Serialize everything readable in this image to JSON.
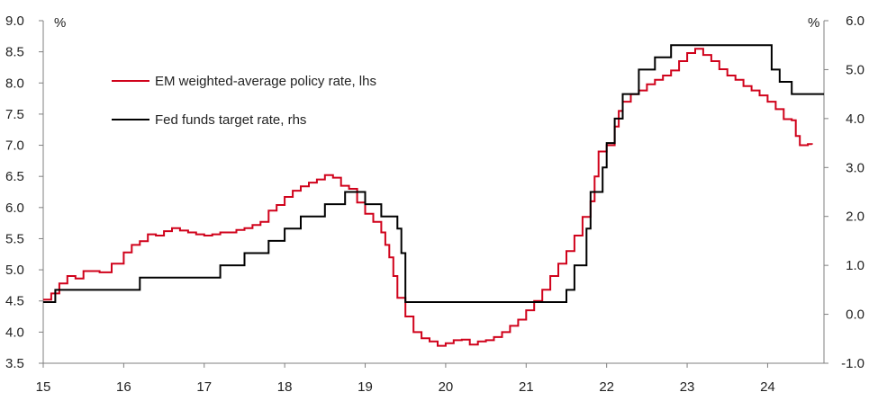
{
  "chart_data": {
    "type": "line",
    "title": "",
    "xlabel": "",
    "x_tick_labels": [
      "15",
      "16",
      "17",
      "18",
      "19",
      "20",
      "21",
      "22",
      "23",
      "24"
    ],
    "x_tick_values": [
      15,
      16,
      17,
      18,
      19,
      20,
      21,
      22,
      23,
      24
    ],
    "xlim": [
      15,
      24.7
    ],
    "y_left": {
      "unit_label": "%",
      "ylim": [
        3.5,
        9.0
      ],
      "tick_values": [
        3.5,
        4.0,
        4.5,
        5.0,
        5.5,
        6.0,
        6.5,
        7.0,
        7.5,
        8.0,
        8.5,
        9.0
      ],
      "tick_labels": [
        "3.5",
        "4.0",
        "4.5",
        "5.0",
        "5.5",
        "6.0",
        "6.5",
        "7.0",
        "7.5",
        "8.0",
        "8.5",
        "9.0"
      ]
    },
    "y_right": {
      "unit_label": "%",
      "ylim": [
        -1.0,
        6.0
      ],
      "tick_values": [
        -1.0,
        0.0,
        1.0,
        2.0,
        3.0,
        4.0,
        5.0,
        6.0
      ],
      "tick_labels": [
        "-1.0",
        "0.0",
        "1.0",
        "2.0",
        "3.0",
        "4.0",
        "5.0",
        "6.0"
      ]
    },
    "grid": false,
    "legend_position": "top-left",
    "series": [
      {
        "name": "EM weighted-average policy rate, lhs",
        "axis": "left",
        "color": "#d0021b",
        "step": true,
        "points": [
          [
            15.0,
            4.52
          ],
          [
            15.1,
            4.62
          ],
          [
            15.2,
            4.78
          ],
          [
            15.3,
            4.9
          ],
          [
            15.4,
            4.86
          ],
          [
            15.5,
            4.98
          ],
          [
            15.7,
            4.96
          ],
          [
            15.85,
            5.1
          ],
          [
            16.0,
            5.28
          ],
          [
            16.1,
            5.4
          ],
          [
            16.2,
            5.46
          ],
          [
            16.3,
            5.57
          ],
          [
            16.4,
            5.55
          ],
          [
            16.5,
            5.62
          ],
          [
            16.6,
            5.67
          ],
          [
            16.7,
            5.63
          ],
          [
            16.8,
            5.6
          ],
          [
            16.9,
            5.57
          ],
          [
            17.0,
            5.55
          ],
          [
            17.1,
            5.57
          ],
          [
            17.2,
            5.6
          ],
          [
            17.4,
            5.64
          ],
          [
            17.5,
            5.67
          ],
          [
            17.6,
            5.72
          ],
          [
            17.7,
            5.77
          ],
          [
            17.8,
            5.95
          ],
          [
            17.9,
            6.04
          ],
          [
            18.0,
            6.17
          ],
          [
            18.1,
            6.27
          ],
          [
            18.2,
            6.34
          ],
          [
            18.3,
            6.4
          ],
          [
            18.4,
            6.45
          ],
          [
            18.5,
            6.52
          ],
          [
            18.6,
            6.48
          ],
          [
            18.7,
            6.35
          ],
          [
            18.8,
            6.3
          ],
          [
            18.9,
            6.08
          ],
          [
            19.0,
            5.9
          ],
          [
            19.1,
            5.77
          ],
          [
            19.2,
            5.6
          ],
          [
            19.25,
            5.4
          ],
          [
            19.3,
            5.2
          ],
          [
            19.35,
            4.9
          ],
          [
            19.4,
            4.55
          ],
          [
            19.5,
            4.25
          ],
          [
            19.6,
            4.0
          ],
          [
            19.7,
            3.9
          ],
          [
            19.8,
            3.85
          ],
          [
            19.9,
            3.78
          ],
          [
            20.0,
            3.82
          ],
          [
            20.1,
            3.87
          ],
          [
            20.2,
            3.88
          ],
          [
            20.3,
            3.8
          ],
          [
            20.4,
            3.85
          ],
          [
            20.5,
            3.87
          ],
          [
            20.6,
            3.92
          ],
          [
            20.7,
            4.0
          ],
          [
            20.8,
            4.1
          ],
          [
            20.9,
            4.2
          ],
          [
            21.0,
            4.35
          ],
          [
            21.1,
            4.5
          ],
          [
            21.2,
            4.68
          ],
          [
            21.3,
            4.9
          ],
          [
            21.4,
            5.1
          ],
          [
            21.5,
            5.3
          ],
          [
            21.6,
            5.55
          ],
          [
            21.7,
            5.85
          ],
          [
            21.8,
            6.1
          ],
          [
            21.85,
            6.5
          ],
          [
            21.9,
            6.9
          ],
          [
            22.0,
            7.0
          ],
          [
            22.1,
            7.3
          ],
          [
            22.15,
            7.55
          ],
          [
            22.2,
            7.7
          ],
          [
            22.3,
            7.82
          ],
          [
            22.4,
            7.88
          ],
          [
            22.5,
            7.98
          ],
          [
            22.6,
            8.05
          ],
          [
            22.7,
            8.12
          ],
          [
            22.8,
            8.2
          ],
          [
            22.9,
            8.35
          ],
          [
            23.0,
            8.48
          ],
          [
            23.1,
            8.55
          ],
          [
            23.2,
            8.45
          ],
          [
            23.3,
            8.35
          ],
          [
            23.4,
            8.22
          ],
          [
            23.5,
            8.12
          ],
          [
            23.6,
            8.05
          ],
          [
            23.7,
            7.95
          ],
          [
            23.8,
            7.88
          ],
          [
            23.9,
            7.8
          ],
          [
            24.0,
            7.7
          ],
          [
            24.1,
            7.58
          ],
          [
            24.2,
            7.42
          ],
          [
            24.3,
            7.4
          ],
          [
            24.35,
            7.15
          ],
          [
            24.4,
            7.0
          ],
          [
            24.5,
            7.02
          ],
          [
            24.55,
            7.01
          ]
        ]
      },
      {
        "name": "Fed funds target rate, rhs",
        "axis": "right",
        "color": "#000000",
        "step": true,
        "points": [
          [
            15.0,
            0.25
          ],
          [
            15.15,
            0.5
          ],
          [
            16.0,
            0.5
          ],
          [
            16.2,
            0.75
          ],
          [
            17.0,
            0.75
          ],
          [
            17.2,
            1.0
          ],
          [
            17.5,
            1.25
          ],
          [
            17.8,
            1.5
          ],
          [
            18.0,
            1.75
          ],
          [
            18.2,
            2.0
          ],
          [
            18.5,
            2.25
          ],
          [
            18.75,
            2.5
          ],
          [
            19.0,
            2.25
          ],
          [
            19.2,
            2.0
          ],
          [
            19.4,
            1.75
          ],
          [
            19.45,
            1.25
          ],
          [
            19.5,
            0.25
          ],
          [
            21.0,
            0.25
          ],
          [
            21.5,
            0.5
          ],
          [
            21.6,
            1.0
          ],
          [
            21.75,
            1.75
          ],
          [
            21.8,
            2.5
          ],
          [
            21.95,
            3.0
          ],
          [
            22.0,
            3.5
          ],
          [
            22.1,
            4.0
          ],
          [
            22.2,
            4.5
          ],
          [
            22.4,
            5.0
          ],
          [
            22.6,
            5.25
          ],
          [
            22.8,
            5.5
          ],
          [
            23.0,
            5.5
          ],
          [
            23.9,
            5.5
          ],
          [
            24.05,
            5.0
          ],
          [
            24.15,
            4.75
          ],
          [
            24.3,
            4.5
          ],
          [
            24.7,
            4.5
          ]
        ]
      }
    ]
  }
}
